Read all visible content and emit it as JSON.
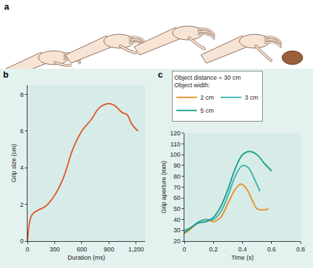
{
  "panel_a": {
    "label": "a"
  },
  "chart_data": [
    {
      "type": "line",
      "title": "b",
      "x_label": "Duration (ms)",
      "y_label": "Grip size (cm)",
      "x": [
        0,
        30,
        60,
        120,
        200,
        300,
        400,
        500,
        600,
        700,
        800,
        900,
        960,
        1050,
        1100,
        1150,
        1220
      ],
      "values": [
        0,
        1.2,
        1.5,
        1.7,
        1.9,
        2.5,
        3.5,
        5.0,
        6.0,
        6.6,
        7.3,
        7.5,
        7.4,
        7.0,
        6.9,
        6.4,
        6.0
      ],
      "color": "#e05a2b",
      "xlim": [
        0,
        1300
      ],
      "ylim": [
        0,
        8.5
      ],
      "xticks": [
        0,
        300,
        600,
        900,
        {
          "value": 1200,
          "label": "1,200"
        }
      ],
      "yticks": [
        0,
        2,
        4,
        6,
        8
      ],
      "grid": false
    },
    {
      "type": "line",
      "title": "c",
      "x_label": "Time (s)",
      "y_label": "Grip aperture (mm)",
      "legend_title": [
        "Object distance = 30 cm",
        "Object width:"
      ],
      "legend": "top",
      "series": [
        {
          "name": "2 cm",
          "color": "#e8902a",
          "x": [
            0,
            0.05,
            0.1,
            0.15,
            0.2,
            0.25,
            0.3,
            0.35,
            0.39,
            0.43,
            0.47,
            0.5,
            0.55,
            0.58
          ],
          "values": [
            27,
            32,
            38,
            40,
            38,
            42,
            55,
            68,
            73,
            68,
            57,
            50,
            49,
            50
          ]
        },
        {
          "name": "3 cm",
          "color": "#3ab5b0",
          "x": [
            0,
            0.05,
            0.1,
            0.15,
            0.2,
            0.25,
            0.3,
            0.35,
            0.4,
            0.44,
            0.48,
            0.52
          ],
          "values": [
            30,
            33,
            38,
            40,
            40,
            47,
            62,
            80,
            90,
            88,
            78,
            66
          ]
        },
        {
          "name": "5 cm",
          "color": "#1d9e8c",
          "x": [
            0,
            0.05,
            0.1,
            0.15,
            0.2,
            0.25,
            0.3,
            0.35,
            0.4,
            0.45,
            0.5,
            0.55,
            0.6
          ],
          "values": [
            28,
            33,
            37,
            38,
            42,
            52,
            68,
            87,
            100,
            103,
            100,
            92,
            85
          ]
        }
      ],
      "xlim": [
        0,
        0.8
      ],
      "ylim": [
        20,
        120
      ],
      "xticks": [
        0,
        0.2,
        0.4,
        0.6,
        0.8
      ],
      "yticks": [
        20,
        30,
        40,
        50,
        60,
        70,
        80,
        90,
        100,
        110,
        120
      ],
      "grid": false
    }
  ]
}
